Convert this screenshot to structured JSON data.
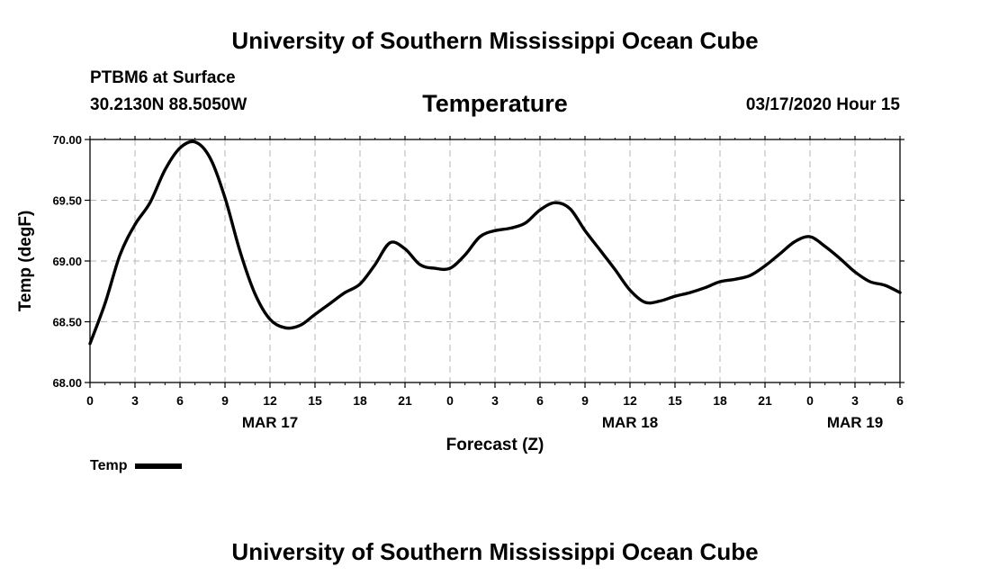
{
  "header": {
    "title": "University of Southern Mississippi Ocean Cube",
    "station": "PTBM6 at Surface",
    "coords": "30.2130N 88.5050W",
    "chart_title": "Temperature",
    "timestamp": "03/17/2020 Hour 15"
  },
  "footer": {
    "title": "University of Southern Mississippi Ocean Cube"
  },
  "legend": {
    "label": "Temp"
  },
  "chart_data": {
    "type": "line",
    "title": "Temperature",
    "xlabel": "Forecast (Z)",
    "ylabel": "Temp (degF)",
    "xlim": [
      0,
      54
    ],
    "ylim": [
      68.0,
      70.0
    ],
    "grid": true,
    "legend_position": "bottom-left",
    "line_color": "#000000",
    "y_ticks": [
      "68.00",
      "68.50",
      "69.00",
      "69.50",
      "70.00"
    ],
    "x_tick_labels": [
      "0",
      "3",
      "6",
      "9",
      "12",
      "15",
      "18",
      "21",
      "0",
      "3",
      "6",
      "9",
      "12",
      "15",
      "18",
      "21",
      "0",
      "3",
      "6"
    ],
    "date_labels": [
      {
        "label": "MAR 17",
        "hour": 12
      },
      {
        "label": "MAR 18",
        "hour": 36
      },
      {
        "label": "MAR 19",
        "hour": 51
      }
    ],
    "series": [
      {
        "name": "Temp",
        "x": [
          0,
          1,
          2,
          3,
          4,
          5,
          6,
          7,
          8,
          9,
          10,
          11,
          12,
          13,
          14,
          15,
          16,
          17,
          18,
          19,
          20,
          21,
          22,
          23,
          24,
          25,
          26,
          27,
          28,
          29,
          30,
          31,
          32,
          33,
          34,
          35,
          36,
          37,
          38,
          39,
          40,
          41,
          42,
          43,
          44,
          45,
          46,
          47,
          48,
          49,
          50,
          51,
          52,
          53,
          54
        ],
        "values": [
          68.32,
          68.65,
          69.05,
          69.3,
          69.48,
          69.75,
          69.93,
          69.98,
          69.85,
          69.52,
          69.08,
          68.73,
          68.52,
          68.45,
          68.47,
          68.56,
          68.65,
          68.74,
          68.81,
          68.97,
          69.15,
          69.1,
          68.97,
          68.94,
          68.94,
          69.05,
          69.2,
          69.25,
          69.27,
          69.31,
          69.42,
          69.48,
          69.43,
          69.25,
          69.09,
          68.93,
          68.76,
          68.66,
          68.67,
          68.71,
          68.74,
          68.78,
          68.83,
          68.85,
          68.88,
          68.96,
          69.06,
          69.16,
          69.2,
          69.12,
          69.02,
          68.91,
          68.83,
          68.8,
          68.74
        ]
      }
    ]
  }
}
